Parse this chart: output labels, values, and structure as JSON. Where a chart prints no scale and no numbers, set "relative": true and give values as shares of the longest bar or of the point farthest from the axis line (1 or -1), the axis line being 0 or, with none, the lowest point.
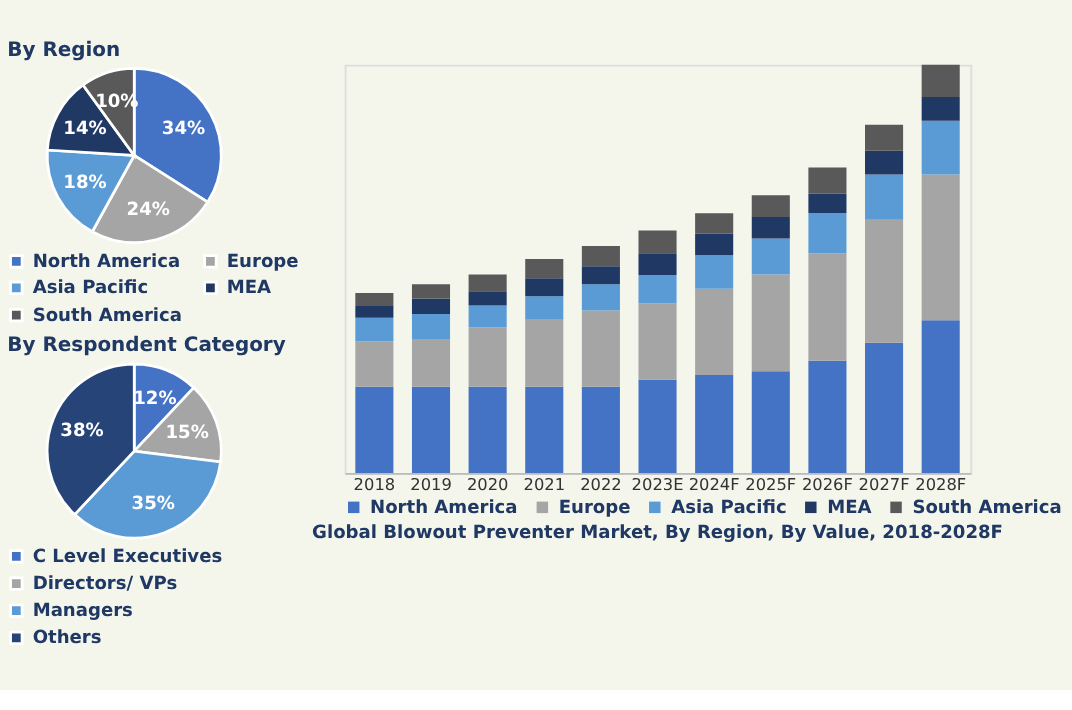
{
  "chart_data": [
    {
      "type": "pie",
      "title": "By Region",
      "categories": [
        "North America",
        "Europe",
        "Asia Pacific",
        "MEA",
        "South America"
      ],
      "values": [
        34,
        24,
        18,
        14,
        10
      ],
      "colors": [
        "#4472c4",
        "#a5a5a5",
        "#5b9bd5",
        "#203864",
        "#595959"
      ],
      "value_labels": [
        "34%",
        "24%",
        "18%",
        "14%",
        "10%"
      ],
      "legend": "bottom"
    },
    {
      "type": "pie",
      "title": "By Respondent Category",
      "categories": [
        "C Level Executives",
        "Directors/ VPs",
        "Managers",
        "Others"
      ],
      "values": [
        12,
        15,
        35,
        38
      ],
      "colors": [
        "#4472c4",
        "#a5a5a5",
        "#5b9bd5",
        "#264478"
      ],
      "value_labels": [
        "12%",
        "15%",
        "35%",
        "38%"
      ],
      "legend": "bottom"
    },
    {
      "type": "bar",
      "title": "Global Blowout Preventer Market, By Region, By Value, 2018-2028F",
      "relative": true,
      "stacked": true,
      "legend": "bottom",
      "categories": [
        "2018",
        "2019",
        "2020",
        "2021",
        "2022",
        "2023E",
        "2024F",
        "2025F",
        "2026F",
        "2027F",
        "2028F"
      ],
      "series": [
        {
          "name": "North America",
          "color": "#4472c4",
          "values": [
            0.211,
            0.211,
            0.211,
            0.211,
            0.211,
            0.228,
            0.24,
            0.249,
            0.275,
            0.319,
            0.374
          ]
        },
        {
          "name": "Europe",
          "color": "#a5a5a5",
          "values": [
            0.111,
            0.117,
            0.146,
            0.164,
            0.187,
            0.187,
            0.211,
            0.237,
            0.263,
            0.301,
            0.357
          ]
        },
        {
          "name": "Asia Pacific",
          "color": "#5b9bd5",
          "values": [
            0.058,
            0.061,
            0.053,
            0.058,
            0.064,
            0.07,
            0.082,
            0.088,
            0.099,
            0.111,
            0.132
          ]
        },
        {
          "name": "MEA",
          "color": "#203864",
          "values": [
            0.029,
            0.038,
            0.035,
            0.044,
            0.044,
            0.053,
            0.053,
            0.053,
            0.047,
            0.058,
            0.058
          ]
        },
        {
          "name": "South America",
          "color": "#595959",
          "values": [
            0.032,
            0.035,
            0.041,
            0.047,
            0.05,
            0.056,
            0.05,
            0.053,
            0.064,
            0.064,
            0.079
          ]
        }
      ]
    }
  ]
}
